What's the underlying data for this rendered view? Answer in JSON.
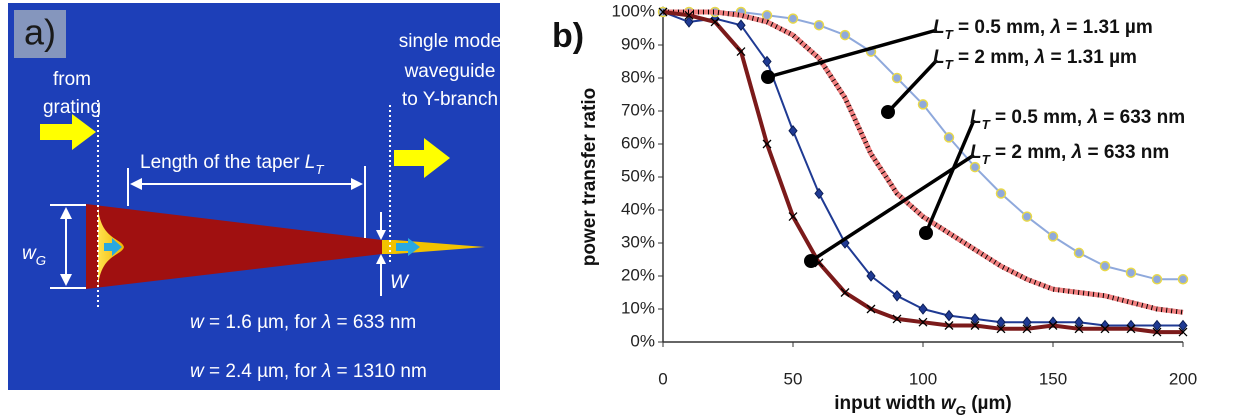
{
  "panel_a": {
    "label": "a)",
    "from_grating": [
      "from",
      "grating"
    ],
    "waveguide_note": [
      "single mode",
      "waveguide",
      "to Y-branch"
    ],
    "taper_label": [
      "Length of the taper ",
      "L",
      "T"
    ],
    "wg_label": [
      "w",
      "G"
    ],
    "w_label": "W",
    "width_633": [
      "w",
      " = 1.6 µm, for ",
      "λ",
      " = 633 nm"
    ],
    "width_1310": [
      "w",
      " = 2.4 µm, for ",
      "λ",
      " = 1310 nm"
    ]
  },
  "panel_b_label": "b)",
  "chart_data": {
    "type": "line",
    "xlabel": [
      "input width ",
      "w",
      "G",
      " (µm)"
    ],
    "ylabel": "power transfer ratio",
    "x": [
      0,
      10,
      20,
      30,
      40,
      50,
      60,
      70,
      80,
      90,
      100,
      110,
      120,
      130,
      140,
      150,
      160,
      170,
      180,
      190,
      200
    ],
    "xlim": [
      0,
      200
    ],
    "xticks": [
      0,
      50,
      100,
      150,
      200
    ],
    "ylim": [
      0,
      100
    ],
    "yticks": [
      {
        "value": 0,
        "label": "0%"
      },
      {
        "value": 10,
        "label": "10%"
      },
      {
        "value": 20,
        "label": "20%"
      },
      {
        "value": 30,
        "label": "30%"
      },
      {
        "value": 40,
        "label": "40%"
      },
      {
        "value": 50,
        "label": "50%"
      },
      {
        "value": 60,
        "label": "60%"
      },
      {
        "value": 70,
        "label": "70%"
      },
      {
        "value": 80,
        "label": "80%"
      },
      {
        "value": 90,
        "label": "90%"
      },
      {
        "value": 100,
        "label": "100%"
      }
    ],
    "grid": false,
    "series": [
      {
        "name": [
          "L",
          "T",
          " = 0.5 mm, ",
          "λ",
          " = 1.31 µm"
        ],
        "color": "#1f3a93",
        "marker": "diamond",
        "values": [
          100,
          97,
          98,
          96,
          85,
          64,
          45,
          30,
          20,
          14,
          10,
          8,
          7,
          6,
          6,
          6,
          6,
          5,
          5,
          5,
          5
        ]
      },
      {
        "name": [
          "L",
          "T",
          " = 2 mm, ",
          "λ",
          " = 1.31 µm"
        ],
        "color": "#8fa9dc",
        "marker": "circle",
        "values": [
          100,
          100,
          100,
          100,
          99,
          98,
          96,
          93,
          88,
          80,
          72,
          62,
          53,
          45,
          38,
          32,
          27,
          23,
          21,
          19,
          19
        ]
      },
      {
        "name": [
          "L",
          "T",
          " = 0.5 mm, ",
          "λ",
          " = 633 nm"
        ],
        "color": "#f08080",
        "marker": "none",
        "values": [
          100,
          100,
          100,
          99,
          97,
          93,
          86,
          74,
          57,
          45,
          38,
          33,
          28,
          23,
          19,
          16,
          15,
          14,
          12,
          10,
          9
        ]
      },
      {
        "name": [
          "L",
          "T",
          " = 2 mm, ",
          "λ",
          " = 633 nm"
        ],
        "color": "#7b1a1a",
        "marker": "x",
        "values": [
          100,
          99,
          97,
          88,
          60,
          38,
          24,
          15,
          10,
          7,
          6,
          5,
          5,
          4,
          4,
          5,
          4,
          4,
          4,
          3,
          3
        ]
      }
    ]
  }
}
